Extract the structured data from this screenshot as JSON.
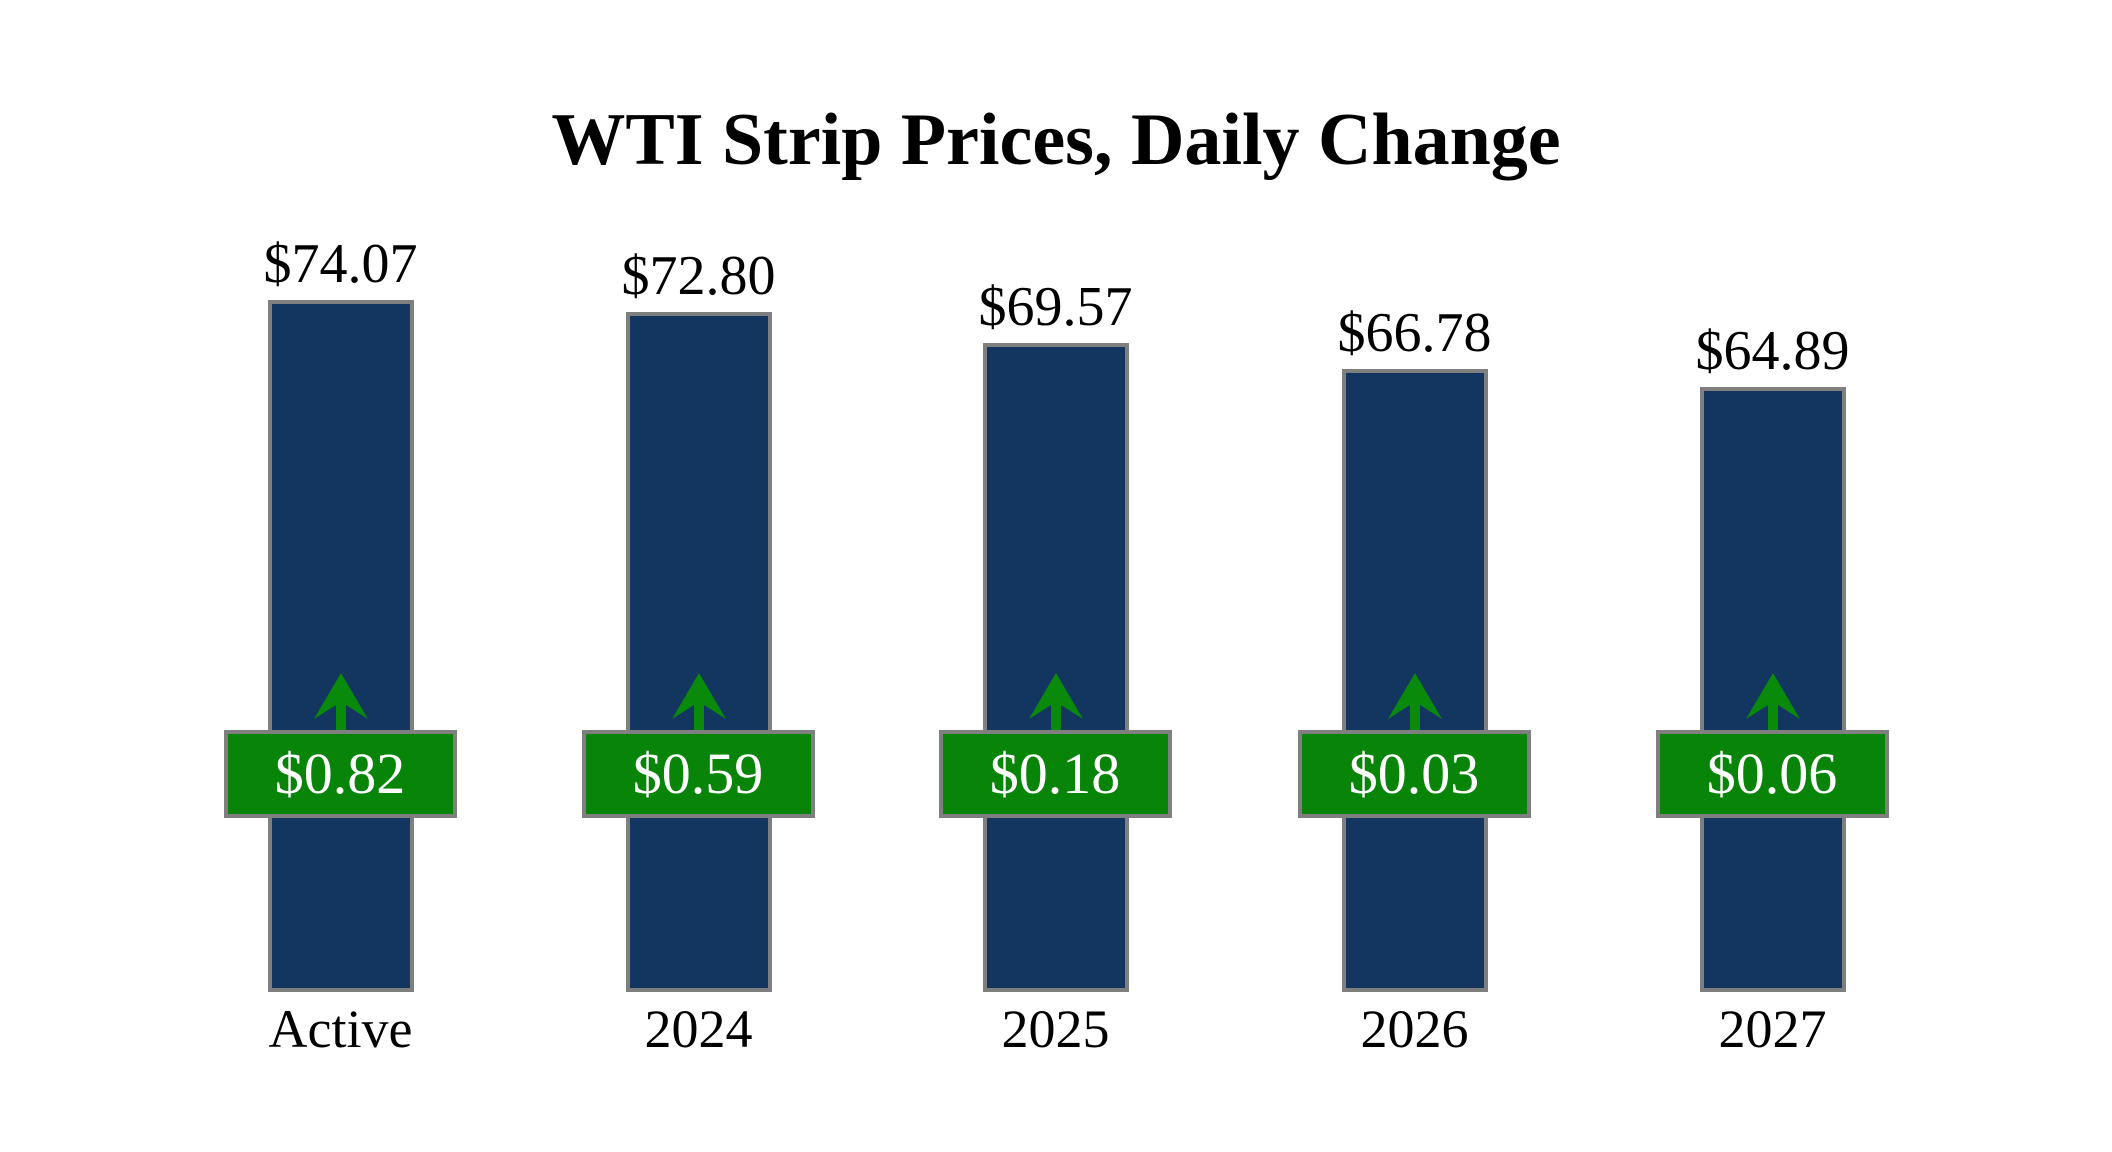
{
  "chart_data": {
    "type": "bar",
    "title": "WTI Strip Prices, Daily Change",
    "categories": [
      "Active",
      "2024",
      "2025",
      "2026",
      "2027"
    ],
    "series": [
      {
        "name": "Strip Price",
        "values": [
          74.07,
          72.8,
          69.57,
          66.78,
          64.89
        ]
      },
      {
        "name": "Daily Change",
        "values": [
          0.82,
          0.59,
          0.18,
          0.03,
          0.06
        ]
      }
    ],
    "price_labels": [
      "$74.07",
      "$72.80",
      "$69.57",
      "$66.78",
      "$64.89"
    ],
    "change_labels": [
      "$0.82",
      "$0.59",
      "$0.18",
      "$0.03",
      "$0.06"
    ],
    "change_directions": [
      "up",
      "up",
      "up",
      "up",
      "up"
    ],
    "xlabel": "",
    "ylabel": "",
    "legend": "none",
    "grid": "off",
    "axes": "hidden, values shown as data labels",
    "colors": {
      "bar_fill": "#133660",
      "bar_border": "#7f7f7f",
      "badge_fill": "#088408",
      "badge_border": "#7f7f7f",
      "badge_text": "#ffffff",
      "arrow": "#0a8a0a",
      "label_text": "#000000",
      "background": "#ffffff"
    }
  }
}
